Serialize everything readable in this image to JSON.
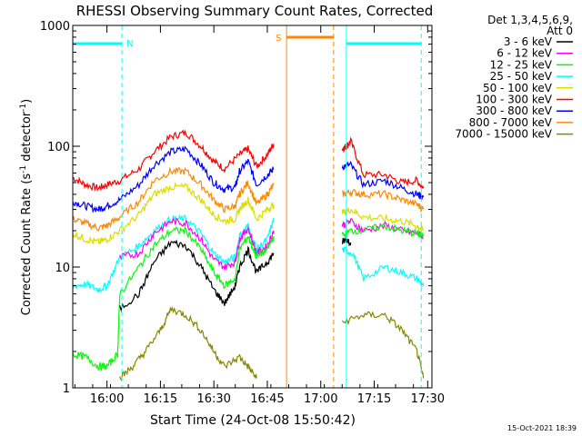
{
  "chart_data": {
    "type": "line",
    "title": "RHESSI Observing Summary Count Rates, Corrected",
    "xlabel": "Start Time (24-Oct-08 15:50:42)",
    "ylabel_main": "Corrected Count Rate (s",
    "ylabel_sup1": "-1",
    "ylabel_mid": " detector",
    "ylabel_sup2": "-1",
    "ylabel_end": ")",
    "y_scale": "log",
    "ylim": [
      1,
      1000
    ],
    "xlim": [
      15.84,
      17.52
    ],
    "x_ticks": [
      "16:00",
      "16:15",
      "16:30",
      "16:45",
      "17:00",
      "17:15",
      "17:30"
    ],
    "y_ticks": [
      "1",
      "10",
      "100",
      "1000"
    ],
    "legend": {
      "position": "right",
      "header_line1": "Det 1,3,4,5,6,9,",
      "header_line2": "Att 0",
      "entries": [
        {
          "label": "3 - 6 keV",
          "color": "#000000"
        },
        {
          "label": "6 - 12 keV",
          "color": "#ff00ff"
        },
        {
          "label": "12 - 25 keV",
          "color": "#00ff00"
        },
        {
          "label": "25 - 50 keV",
          "color": "#00ffff"
        },
        {
          "label": "50 - 100 keV",
          "color": "#dddd00"
        },
        {
          "label": "100 - 300 keV",
          "color": "#ff0000"
        },
        {
          "label": "300 - 800 keV",
          "color": "#0000ff"
        },
        {
          "label": "800 - 7000 keV",
          "color": "#ff8800"
        },
        {
          "label": "7000 - 15000 keV",
          "color": "#888800"
        }
      ]
    },
    "annotations": [
      {
        "label": "N",
        "color": "#00ffff"
      },
      {
        "label": "S",
        "color": "#ff8800"
      }
    ],
    "footer": "15-Oct-2021 18:39",
    "series": [
      {
        "key": "red",
        "color": "#ff0000",
        "segments": [
          [
            [
              15.84,
              55
            ],
            [
              15.9,
              48
            ],
            [
              15.96,
              45
            ],
            [
              16.0,
              48
            ],
            [
              16.06,
              52
            ],
            [
              16.15,
              65
            ],
            [
              16.22,
              90
            ],
            [
              16.3,
              120
            ],
            [
              16.37,
              130
            ],
            [
              16.44,
              100
            ],
            [
              16.5,
              75
            ],
            [
              16.55,
              65
            ],
            [
              16.62,
              85
            ],
            [
              16.66,
              95
            ],
            [
              16.7,
              68
            ],
            [
              16.75,
              85
            ],
            [
              16.78,
              105
            ]
          ],
          [
            [
              17.1,
              95
            ],
            [
              17.12,
              100
            ],
            [
              17.14,
              110
            ],
            [
              17.2,
              58
            ],
            [
              17.3,
              58
            ],
            [
              17.38,
              50
            ],
            [
              17.45,
              52
            ],
            [
              17.48,
              45
            ]
          ]
        ]
      },
      {
        "key": "blue",
        "color": "#0000ff",
        "segments": [
          [
            [
              15.84,
              35
            ],
            [
              15.9,
              32
            ],
            [
              15.96,
              30
            ],
            [
              16.0,
              32
            ],
            [
              16.06,
              36
            ],
            [
              16.15,
              48
            ],
            [
              16.22,
              70
            ],
            [
              16.3,
              90
            ],
            [
              16.37,
              95
            ],
            [
              16.44,
              70
            ],
            [
              16.5,
              50
            ],
            [
              16.55,
              44
            ],
            [
              16.6,
              46
            ],
            [
              16.62,
              62
            ],
            [
              16.66,
              75
            ],
            [
              16.7,
              48
            ],
            [
              16.75,
              58
            ],
            [
              16.78,
              65
            ]
          ],
          [
            [
              17.1,
              68
            ],
            [
              17.14,
              70
            ],
            [
              17.2,
              48
            ],
            [
              17.3,
              52
            ],
            [
              17.38,
              45
            ],
            [
              17.45,
              40
            ],
            [
              17.48,
              38
            ]
          ]
        ]
      },
      {
        "key": "orange",
        "color": "#ff8800",
        "segments": [
          [
            [
              15.84,
              25
            ],
            [
              15.9,
              23
            ],
            [
              15.96,
              21
            ],
            [
              16.0,
              22
            ],
            [
              16.06,
              26
            ],
            [
              16.15,
              35
            ],
            [
              16.22,
              52
            ],
            [
              16.3,
              62
            ],
            [
              16.37,
              62
            ],
            [
              16.44,
              48
            ],
            [
              16.5,
              36
            ],
            [
              16.55,
              30
            ],
            [
              16.6,
              32
            ],
            [
              16.62,
              40
            ],
            [
              16.66,
              50
            ],
            [
              16.7,
              33
            ],
            [
              16.75,
              40
            ],
            [
              16.78,
              48
            ]
          ],
          [
            [
              17.1,
              40
            ],
            [
              17.14,
              42
            ],
            [
              17.2,
              40
            ],
            [
              17.3,
              40
            ],
            [
              17.38,
              36
            ],
            [
              17.45,
              33
            ],
            [
              17.48,
              30
            ]
          ]
        ]
      },
      {
        "key": "yellow",
        "color": "#dddd00",
        "segments": [
          [
            [
              15.84,
              19
            ],
            [
              15.9,
              17
            ],
            [
              15.96,
              16
            ],
            [
              16.0,
              17
            ],
            [
              16.06,
              20
            ],
            [
              16.15,
              27
            ],
            [
              16.22,
              40
            ],
            [
              16.3,
              46
            ],
            [
              16.37,
              46
            ],
            [
              16.44,
              36
            ],
            [
              16.5,
              27
            ],
            [
              16.55,
              24
            ],
            [
              16.6,
              25
            ],
            [
              16.62,
              30
            ],
            [
              16.66,
              36
            ],
            [
              16.7,
              25
            ],
            [
              16.75,
              30
            ],
            [
              16.78,
              33
            ]
          ],
          [
            [
              17.1,
              28
            ],
            [
              17.14,
              30
            ],
            [
              17.2,
              26
            ],
            [
              17.3,
              25
            ],
            [
              17.38,
              24
            ],
            [
              17.45,
              22
            ],
            [
              17.48,
              20
            ]
          ]
        ]
      },
      {
        "key": "cyan",
        "color": "#00ffff",
        "segments": [
          [
            [
              15.84,
              7
            ],
            [
              15.9,
              7.2
            ],
            [
              15.96,
              6.5
            ],
            [
              16.0,
              7
            ],
            [
              16.06,
              12
            ],
            [
              16.15,
              15
            ],
            [
              16.22,
              20
            ],
            [
              16.3,
              25
            ],
            [
              16.37,
              25
            ],
            [
              16.44,
              19
            ],
            [
              16.5,
              13
            ],
            [
              16.55,
              11
            ],
            [
              16.6,
              12
            ],
            [
              16.62,
              18
            ],
            [
              16.66,
              22
            ],
            [
              16.7,
              14
            ],
            [
              16.75,
              17
            ],
            [
              16.78,
              25
            ]
          ],
          [
            [
              17.1,
              14
            ],
            [
              17.15,
              13
            ],
            [
              17.2,
              8
            ],
            [
              17.3,
              10
            ],
            [
              17.38,
              9
            ],
            [
              17.45,
              8
            ],
            [
              17.48,
              7
            ]
          ]
        ]
      },
      {
        "key": "magenta",
        "color": "#ff00ff",
        "segments": [
          [
            [
              16.06,
              12
            ],
            [
              16.15,
              13
            ],
            [
              16.22,
              19
            ],
            [
              16.3,
              24
            ],
            [
              16.37,
              23
            ],
            [
              16.44,
              17
            ],
            [
              16.5,
              11.5
            ],
            [
              16.55,
              10
            ],
            [
              16.6,
              11
            ],
            [
              16.62,
              17
            ],
            [
              16.66,
              21
            ],
            [
              16.7,
              13
            ],
            [
              16.75,
              15
            ],
            [
              16.78,
              20
            ]
          ],
          [
            [
              17.1,
              22
            ],
            [
              17.14,
              24
            ],
            [
              17.2,
              20
            ],
            [
              17.3,
              22
            ],
            [
              17.38,
              20
            ],
            [
              17.45,
              19
            ],
            [
              17.48,
              18
            ]
          ]
        ]
      },
      {
        "key": "green",
        "color": "#00ff00",
        "segments": [
          [
            [
              15.84,
              1.9
            ],
            [
              15.9,
              1.8
            ],
            [
              15.96,
              1.5
            ],
            [
              16.0,
              1.5
            ],
            [
              16.05,
              1.9
            ],
            [
              16.06,
              6
            ],
            [
              16.15,
              10
            ],
            [
              16.22,
              15
            ],
            [
              16.3,
              20
            ],
            [
              16.37,
              20
            ],
            [
              16.44,
              14
            ],
            [
              16.5,
              9
            ],
            [
              16.55,
              7
            ],
            [
              16.6,
              8
            ],
            [
              16.62,
              14
            ],
            [
              16.66,
              18
            ],
            [
              16.7,
              12
            ],
            [
              16.75,
              14
            ],
            [
              16.78,
              18
            ]
          ],
          [
            [
              17.1,
              18
            ],
            [
              17.14,
              20
            ],
            [
              17.2,
              20
            ],
            [
              17.3,
              22
            ],
            [
              17.38,
              20
            ],
            [
              17.45,
              19
            ],
            [
              17.48,
              18
            ]
          ]
        ]
      },
      {
        "key": "black",
        "color": "#000000",
        "segments": [
          [
            [
              16.06,
              4.5
            ],
            [
              16.15,
              6
            ],
            [
              16.22,
              11
            ],
            [
              16.3,
              16
            ],
            [
              16.37,
              15
            ],
            [
              16.44,
              10
            ],
            [
              16.5,
              6.5
            ],
            [
              16.55,
              5
            ],
            [
              16.6,
              7
            ],
            [
              16.62,
              10
            ],
            [
              16.66,
              14
            ],
            [
              16.7,
              9
            ],
            [
              16.75,
              11
            ],
            [
              16.78,
              13
            ]
          ],
          [
            [
              17.1,
              16
            ],
            [
              17.12,
              17
            ],
            [
              17.14,
              16
            ]
          ]
        ]
      },
      {
        "key": "olive",
        "color": "#888800",
        "segments": [
          [
            [
              16.06,
              1.2
            ],
            [
              16.12,
              1.5
            ],
            [
              16.18,
              2.0
            ],
            [
              16.25,
              3.0
            ],
            [
              16.3,
              4.5
            ],
            [
              16.37,
              4.0
            ],
            [
              16.44,
              3.0
            ],
            [
              16.5,
              2.0
            ],
            [
              16.55,
              1.5
            ],
            [
              16.62,
              1.8
            ],
            [
              16.66,
              1.5
            ],
            [
              16.7,
              1.2
            ]
          ],
          [
            [
              17.1,
              3.5
            ],
            [
              17.2,
              4.0
            ],
            [
              17.3,
              4.0
            ],
            [
              17.38,
              3.0
            ],
            [
              17.45,
              2.0
            ],
            [
              17.48,
              1.2
            ]
          ]
        ]
      }
    ]
  }
}
